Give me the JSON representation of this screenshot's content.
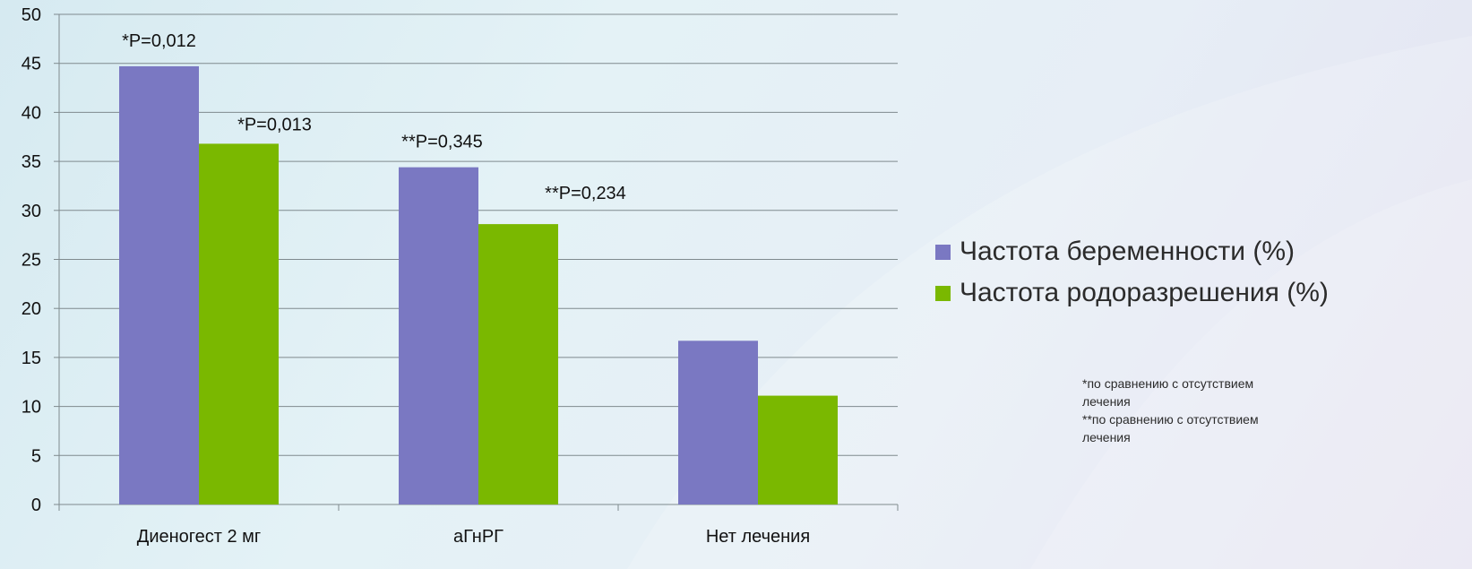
{
  "chart_data": {
    "type": "bar",
    "categories": [
      "Диеногест 2 мг",
      "аГнРГ",
      "Нет лечения"
    ],
    "series": [
      {
        "name": "Частота беременности (%)",
        "values": [
          44.7,
          34.4,
          16.7
        ],
        "color": "#7a78c2"
      },
      {
        "name": "Частота родоразрешения (%)",
        "values": [
          36.8,
          28.6,
          11.1
        ],
        "color": "#7ab800"
      }
    ],
    "annotations": [
      {
        "text": "*P=0,012",
        "category": 0,
        "series": 0
      },
      {
        "text": "*P=0,013",
        "category": 0,
        "series": 1
      },
      {
        "text": "**P=0,345",
        "category": 1,
        "series": 0
      },
      {
        "text": "**P=0,234",
        "category": 1,
        "series": 1
      }
    ],
    "ylim": [
      0,
      50
    ],
    "yticks": [
      0,
      5,
      10,
      15,
      20,
      25,
      30,
      35,
      40,
      45,
      50
    ],
    "grid": true,
    "legend_position": "right",
    "title": "",
    "xlabel": "",
    "ylabel": ""
  },
  "footnotes": {
    "note1": "*по сравнению с отсутствием лечения",
    "note2": "**по сравнению с отсутствием лечения"
  }
}
